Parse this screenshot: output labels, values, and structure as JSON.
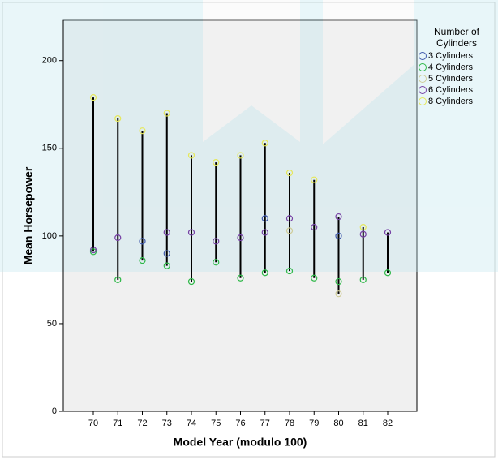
{
  "chart_data": {
    "type": "high-low",
    "xlabel": "Model Year (modulo 100)",
    "ylabel": "Mean Horsepower",
    "legend_title": "Number of Cylinders",
    "legend_position": "right",
    "categories": [
      "70",
      "71",
      "72",
      "73",
      "74",
      "75",
      "76",
      "77",
      "78",
      "79",
      "80",
      "81",
      "82"
    ],
    "ylim": [
      0,
      223
    ],
    "yticks": [
      0,
      50,
      100,
      150,
      200
    ],
    "series": [
      {
        "name": "3 Cylinders",
        "color": "#3e58ac",
        "values": [
          null,
          null,
          97,
          90,
          null,
          null,
          null,
          110,
          null,
          null,
          100,
          null,
          null
        ]
      },
      {
        "name": "4 Cylinders",
        "color": "#2eb848",
        "values": [
          91,
          75,
          86,
          83,
          74,
          85,
          76,
          79,
          80,
          76,
          74,
          75,
          79
        ]
      },
      {
        "name": "5 Cylinders",
        "color": "#cfcc98",
        "values": [
          null,
          null,
          null,
          null,
          null,
          null,
          null,
          null,
          103,
          null,
          67,
          null,
          null
        ]
      },
      {
        "name": "6 Cylinders",
        "color": "#753fa4",
        "values": [
          92,
          99,
          null,
          102,
          102,
          97,
          99,
          102,
          110,
          105,
          111,
          101,
          102
        ]
      },
      {
        "name": "8 Cylinders",
        "color": "#e6e85a",
        "values": [
          179,
          167,
          160,
          170,
          146,
          142,
          146,
          153,
          136,
          132,
          null,
          105,
          null
        ]
      }
    ]
  }
}
